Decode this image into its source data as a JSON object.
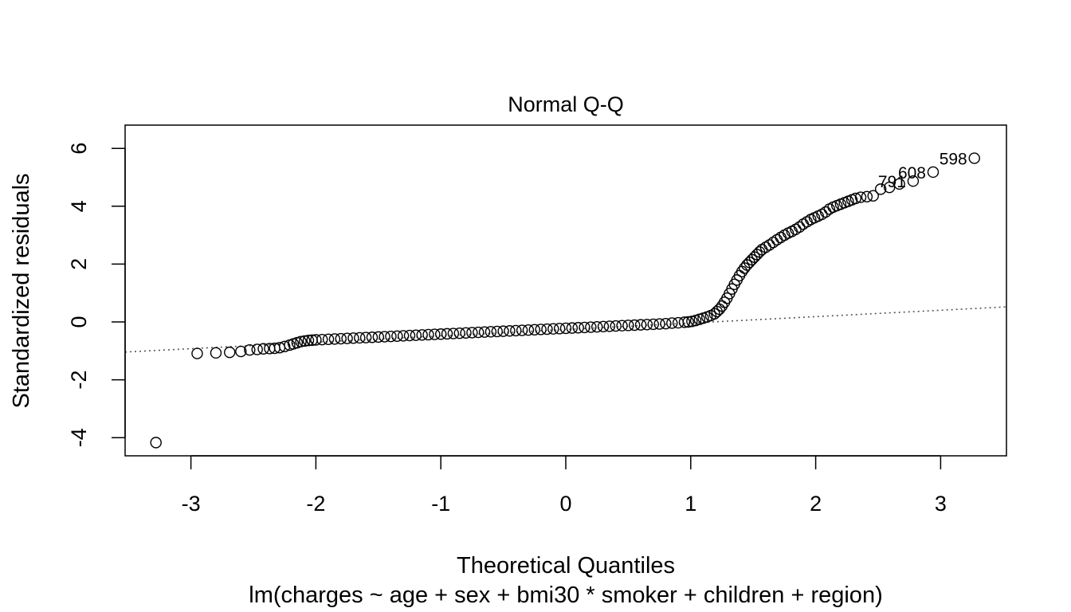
{
  "chart_data": {
    "type": "scatter",
    "title": "Normal Q-Q",
    "xlabel": "Theoretical Quantiles",
    "ylabel": "Standardized residuals",
    "subtitle": "lm(charges ~ age + sex + bmi30 * smoker + children + region)",
    "xlim": [
      -3.55,
      3.55
    ],
    "ylim": [
      -4.6,
      6.8
    ],
    "xticks": [
      -3,
      -2,
      -1,
      0,
      1,
      2,
      3
    ],
    "yticks": [
      -4,
      -2,
      0,
      2,
      4,
      6
    ],
    "grid": false,
    "marker": "open-circle",
    "reference_line": {
      "slope": 0.22,
      "intercept": -0.26,
      "style": "dotted",
      "color": "#555555"
    },
    "labeled_points": [
      {
        "label": "598",
        "x": 3.27,
        "y": 5.66
      },
      {
        "label": "608",
        "x": 2.94,
        "y": 5.18
      },
      {
        "label": "791",
        "x": 2.78,
        "y": 4.87
      }
    ],
    "points": [
      [
        -3.28,
        -4.17
      ],
      [
        -2.95,
        -1.09
      ],
      [
        -2.8,
        -1.07
      ],
      [
        -2.69,
        -1.05
      ],
      [
        -2.6,
        -1.02
      ],
      [
        -2.53,
        -0.97
      ],
      [
        -2.47,
        -0.95
      ],
      [
        -2.42,
        -0.93
      ],
      [
        -2.37,
        -0.92
      ],
      [
        -2.33,
        -0.91
      ],
      [
        -2.29,
        -0.89
      ],
      [
        -2.25,
        -0.85
      ],
      [
        -2.21,
        -0.8
      ],
      [
        -2.18,
        -0.76
      ],
      [
        -2.15,
        -0.72
      ],
      [
        -2.12,
        -0.68
      ],
      [
        -2.09,
        -0.66
      ],
      [
        -2.06,
        -0.64
      ],
      [
        -2.03,
        -0.63
      ],
      [
        -2.0,
        -0.62
      ],
      [
        -1.95,
        -0.61
      ],
      [
        -1.9,
        -0.6
      ],
      [
        -1.85,
        -0.59
      ],
      [
        -1.8,
        -0.58
      ],
      [
        -1.75,
        -0.57
      ],
      [
        -1.7,
        -0.56
      ],
      [
        -1.65,
        -0.55
      ],
      [
        -1.6,
        -0.54
      ],
      [
        -1.55,
        -0.53
      ],
      [
        -1.5,
        -0.52
      ],
      [
        -1.45,
        -0.51
      ],
      [
        -1.4,
        -0.5
      ],
      [
        -1.35,
        -0.49
      ],
      [
        -1.3,
        -0.48
      ],
      [
        -1.25,
        -0.47
      ],
      [
        -1.2,
        -0.46
      ],
      [
        -1.15,
        -0.45
      ],
      [
        -1.1,
        -0.44
      ],
      [
        -1.05,
        -0.43
      ],
      [
        -1.0,
        -0.42
      ],
      [
        -0.95,
        -0.41
      ],
      [
        -0.9,
        -0.4
      ],
      [
        -0.85,
        -0.39
      ],
      [
        -0.8,
        -0.38
      ],
      [
        -0.75,
        -0.37
      ],
      [
        -0.7,
        -0.36
      ],
      [
        -0.65,
        -0.35
      ],
      [
        -0.6,
        -0.34
      ],
      [
        -0.55,
        -0.33
      ],
      [
        -0.5,
        -0.32
      ],
      [
        -0.45,
        -0.31
      ],
      [
        -0.4,
        -0.3
      ],
      [
        -0.35,
        -0.29
      ],
      [
        -0.3,
        -0.28
      ],
      [
        -0.25,
        -0.27
      ],
      [
        -0.2,
        -0.26
      ],
      [
        -0.15,
        -0.25
      ],
      [
        -0.1,
        -0.24
      ],
      [
        -0.05,
        -0.23
      ],
      [
        0.0,
        -0.22
      ],
      [
        0.05,
        -0.21
      ],
      [
        0.1,
        -0.2
      ],
      [
        0.15,
        -0.19
      ],
      [
        0.2,
        -0.18
      ],
      [
        0.25,
        -0.17
      ],
      [
        0.3,
        -0.16
      ],
      [
        0.35,
        -0.15
      ],
      [
        0.4,
        -0.14
      ],
      [
        0.45,
        -0.13
      ],
      [
        0.5,
        -0.12
      ],
      [
        0.55,
        -0.11
      ],
      [
        0.6,
        -0.1
      ],
      [
        0.65,
        -0.09
      ],
      [
        0.7,
        -0.08
      ],
      [
        0.75,
        -0.07
      ],
      [
        0.8,
        -0.06
      ],
      [
        0.85,
        -0.04
      ],
      [
        0.9,
        -0.03
      ],
      [
        0.95,
        -0.01
      ],
      [
        0.98,
        0.0
      ],
      [
        1.01,
        0.02
      ],
      [
        1.04,
        0.05
      ],
      [
        1.07,
        0.09
      ],
      [
        1.1,
        0.13
      ],
      [
        1.13,
        0.17
      ],
      [
        1.16,
        0.22
      ],
      [
        1.19,
        0.28
      ],
      [
        1.21,
        0.36
      ],
      [
        1.23,
        0.44
      ],
      [
        1.25,
        0.55
      ],
      [
        1.27,
        0.68
      ],
      [
        1.29,
        0.82
      ],
      [
        1.31,
        0.98
      ],
      [
        1.33,
        1.14
      ],
      [
        1.35,
        1.3
      ],
      [
        1.37,
        1.45
      ],
      [
        1.39,
        1.6
      ],
      [
        1.41,
        1.74
      ],
      [
        1.43,
        1.86
      ],
      [
        1.45,
        1.97
      ],
      [
        1.47,
        2.06
      ],
      [
        1.49,
        2.15
      ],
      [
        1.51,
        2.24
      ],
      [
        1.53,
        2.33
      ],
      [
        1.55,
        2.42
      ],
      [
        1.57,
        2.5
      ],
      [
        1.6,
        2.58
      ],
      [
        1.63,
        2.66
      ],
      [
        1.66,
        2.75
      ],
      [
        1.69,
        2.84
      ],
      [
        1.72,
        2.92
      ],
      [
        1.75,
        3.0
      ],
      [
        1.78,
        3.07
      ],
      [
        1.81,
        3.13
      ],
      [
        1.84,
        3.2
      ],
      [
        1.87,
        3.28
      ],
      [
        1.9,
        3.38
      ],
      [
        1.93,
        3.46
      ],
      [
        1.96,
        3.54
      ],
      [
        1.99,
        3.6
      ],
      [
        2.02,
        3.66
      ],
      [
        2.05,
        3.72
      ],
      [
        2.08,
        3.8
      ],
      [
        2.11,
        3.9
      ],
      [
        2.14,
        3.97
      ],
      [
        2.17,
        4.02
      ],
      [
        2.2,
        4.07
      ],
      [
        2.23,
        4.12
      ],
      [
        2.26,
        4.17
      ],
      [
        2.29,
        4.22
      ],
      [
        2.32,
        4.27
      ],
      [
        2.36,
        4.31
      ],
      [
        2.41,
        4.33
      ],
      [
        2.46,
        4.36
      ],
      [
        2.52,
        4.59
      ],
      [
        2.59,
        4.65
      ],
      [
        2.67,
        4.77
      ],
      [
        2.78,
        4.87
      ],
      [
        2.94,
        5.18
      ],
      [
        3.27,
        5.66
      ]
    ]
  }
}
